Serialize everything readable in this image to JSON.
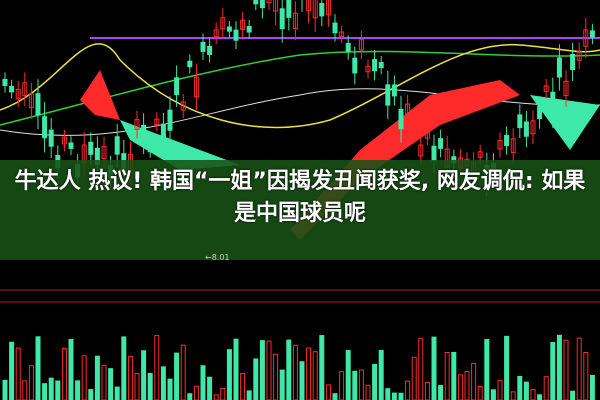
{
  "headline": "牛达人 热议! 韩国“一姐”因揭发丑闻获奖, 网友调侃: 如果是中国球员呢",
  "price_marker": "←8.01",
  "colors": {
    "band": "#185216",
    "up": "#ff2a2a",
    "down": "#3ee8a8",
    "ma_yellow": "#f0e040",
    "ma_green": "#30d030",
    "ma_purple": "#b040ff",
    "ma_white": "#e0e0e0"
  }
}
